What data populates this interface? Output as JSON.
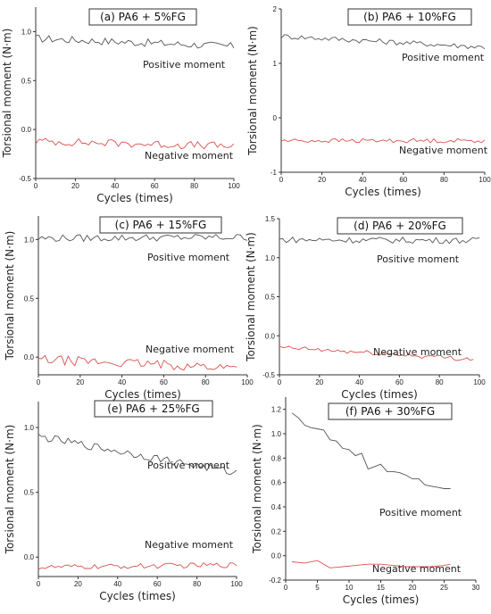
{
  "chart_data": [
    {
      "type": "line",
      "title": "(a) PA6 + 5%FG",
      "xlabel": "Cycles (times)",
      "ylabel": "Torsional moment (N·m)",
      "xlim": [
        0,
        100
      ],
      "ylim": [
        -0.5,
        1.25
      ],
      "xticks": [
        0,
        20,
        40,
        60,
        80,
        100
      ],
      "yticks": [
        -0.5,
        0.0,
        0.5,
        1.0
      ],
      "ytick_labels": [
        "-0.5",
        "0.0",
        "0.5",
        "1.0"
      ],
      "series": [
        {
          "name": "Positive moment",
          "color": "#555555",
          "x": [
            0,
            100
          ],
          "y": [
            0.93,
            0.85
          ],
          "noise": 0.04
        },
        {
          "name": "Negative moment",
          "color": "#d9534f",
          "x": [
            0,
            100
          ],
          "y": [
            -0.12,
            -0.17
          ],
          "noise": 0.04
        }
      ],
      "annotations": [
        "Positive moment",
        "Negative moment"
      ]
    },
    {
      "type": "line",
      "title": "(b) PA6 + 10%FG",
      "xlabel": "Cycles (times)",
      "ylabel": "Torsional moment (N·m)",
      "xlim": [
        0,
        100
      ],
      "ylim": [
        -1,
        2
      ],
      "xticks": [
        0,
        20,
        40,
        60,
        80,
        100
      ],
      "yticks": [
        -1,
        0,
        1,
        2
      ],
      "ytick_labels": [
        "-1",
        "0",
        "1",
        "2"
      ],
      "series": [
        {
          "name": "Positive moment",
          "color": "#555555",
          "x": [
            0,
            100
          ],
          "y": [
            1.5,
            1.3
          ],
          "noise": 0.05
        },
        {
          "name": "Negative moment",
          "color": "#d9534f",
          "x": [
            0,
            100
          ],
          "y": [
            -0.42,
            -0.42
          ],
          "noise": 0.04
        }
      ],
      "annotations": [
        "Positive moment",
        "Negative moment"
      ]
    },
    {
      "type": "line",
      "title": "(c) PA6 + 15%FG",
      "xlabel": "Cycles (times)",
      "ylabel": "Torsional moment (N·m)",
      "xlim": [
        0,
        100
      ],
      "ylim": [
        -0.15,
        1.2
      ],
      "xticks": [
        0,
        20,
        40,
        60,
        80,
        100
      ],
      "yticks": [
        0.0,
        0.5,
        1.0
      ],
      "ytick_labels": [
        "0.0",
        "0.5",
        "1.0"
      ],
      "series": [
        {
          "name": "Positive moment",
          "color": "#555555",
          "x": [
            0,
            100
          ],
          "y": [
            1.01,
            1.02
          ],
          "noise": 0.03
        },
        {
          "name": "Negative moment",
          "color": "#d9534f",
          "x": [
            0,
            95
          ],
          "y": [
            -0.02,
            -0.09
          ],
          "noise": 0.04
        }
      ],
      "annotations": [
        "Positive moment",
        "Negative moment"
      ]
    },
    {
      "type": "line",
      "title": "(d) PA6 + 20%FG",
      "xlabel": "Cycles (times)",
      "ylabel": "Torsional moment (N·m)",
      "xlim": [
        0,
        100
      ],
      "ylim": [
        -0.5,
        1.5
      ],
      "xticks": [
        0,
        20,
        40,
        60,
        80,
        100
      ],
      "yticks": [
        -0.5,
        0.0,
        0.5,
        1.0,
        1.5
      ],
      "ytick_labels": [
        "-0.5",
        "0.0",
        "0.5",
        "1.0",
        "1.5"
      ],
      "series": [
        {
          "name": "Positive moment",
          "color": "#555555",
          "x": [
            0,
            100
          ],
          "y": [
            1.23,
            1.22
          ],
          "noise": 0.04
        },
        {
          "name": "Negative moment",
          "color": "#d9534f",
          "x": [
            0,
            97
          ],
          "y": [
            -0.15,
            -0.3
          ],
          "noise": 0.03
        }
      ],
      "annotations": [
        "Positive moment",
        "Negative moment"
      ]
    },
    {
      "type": "line",
      "title": "(e) PA6 + 25%FG",
      "xlabel": "Cycles (times)",
      "ylabel": "Torsional moment (N·m)",
      "xlim": [
        0,
        100
      ],
      "ylim": [
        -0.15,
        1.2
      ],
      "xticks": [
        0,
        20,
        40,
        60,
        80,
        100
      ],
      "yticks": [
        0.0,
        0.5,
        1.0
      ],
      "ytick_labels": [
        "0.0",
        "0.5",
        "1.0"
      ],
      "series": [
        {
          "name": "Positive moment",
          "color": "#555555",
          "x": [
            0,
            100
          ],
          "y": [
            0.93,
            0.65
          ],
          "noise": 0.03
        },
        {
          "name": "Negative moment",
          "color": "#d9534f",
          "x": [
            0,
            100
          ],
          "y": [
            -0.08,
            -0.06
          ],
          "noise": 0.02
        }
      ],
      "annotations": [
        "Positive moment",
        "Negative moment"
      ]
    },
    {
      "type": "line",
      "title": "(f) PA6 + 30%FG",
      "xlabel": "Cycles (times)",
      "ylabel": "Torsional moment (N·m)",
      "xlim": [
        0,
        30
      ],
      "ylim": [
        -0.2,
        1.3
      ],
      "xticks": [
        0,
        5,
        10,
        15,
        20,
        25,
        30
      ],
      "yticks": [
        -0.2,
        0.0,
        0.2,
        0.4,
        0.6,
        0.8,
        1.0,
        1.2
      ],
      "ytick_labels": [
        "-0.2",
        "0.0",
        "0.2",
        "0.4",
        "0.6",
        "0.8",
        "1.0",
        "1.2"
      ],
      "series": [
        {
          "name": "Positive moment",
          "color": "#555555",
          "x": [
            1,
            2,
            3,
            4,
            5,
            6,
            7,
            8,
            9,
            10,
            11,
            12,
            13,
            14,
            15,
            16,
            17,
            18,
            19,
            20,
            21,
            22,
            23,
            24,
            25,
            26
          ],
          "y": [
            1.17,
            1.13,
            1.07,
            1.05,
            1.04,
            1.03,
            0.95,
            0.94,
            0.88,
            0.87,
            0.82,
            0.84,
            0.71,
            0.73,
            0.75,
            0.69,
            0.69,
            0.68,
            0.66,
            0.63,
            0.63,
            0.58,
            0.57,
            0.56,
            0.55,
            0.55
          ],
          "noise": 0
        },
        {
          "name": "Negative moment",
          "color": "#d9534f",
          "x": [
            1,
            3,
            5,
            7,
            9,
            11,
            13,
            15,
            17,
            19,
            21,
            23,
            25,
            26
          ],
          "y": [
            -0.05,
            -0.06,
            -0.04,
            -0.1,
            -0.09,
            -0.08,
            -0.07,
            -0.07,
            -0.08,
            -0.09,
            -0.09,
            -0.09,
            -0.08,
            -0.07
          ],
          "noise": 0
        }
      ],
      "annotations": [
        "Positive moment",
        "Negative moment"
      ]
    }
  ]
}
